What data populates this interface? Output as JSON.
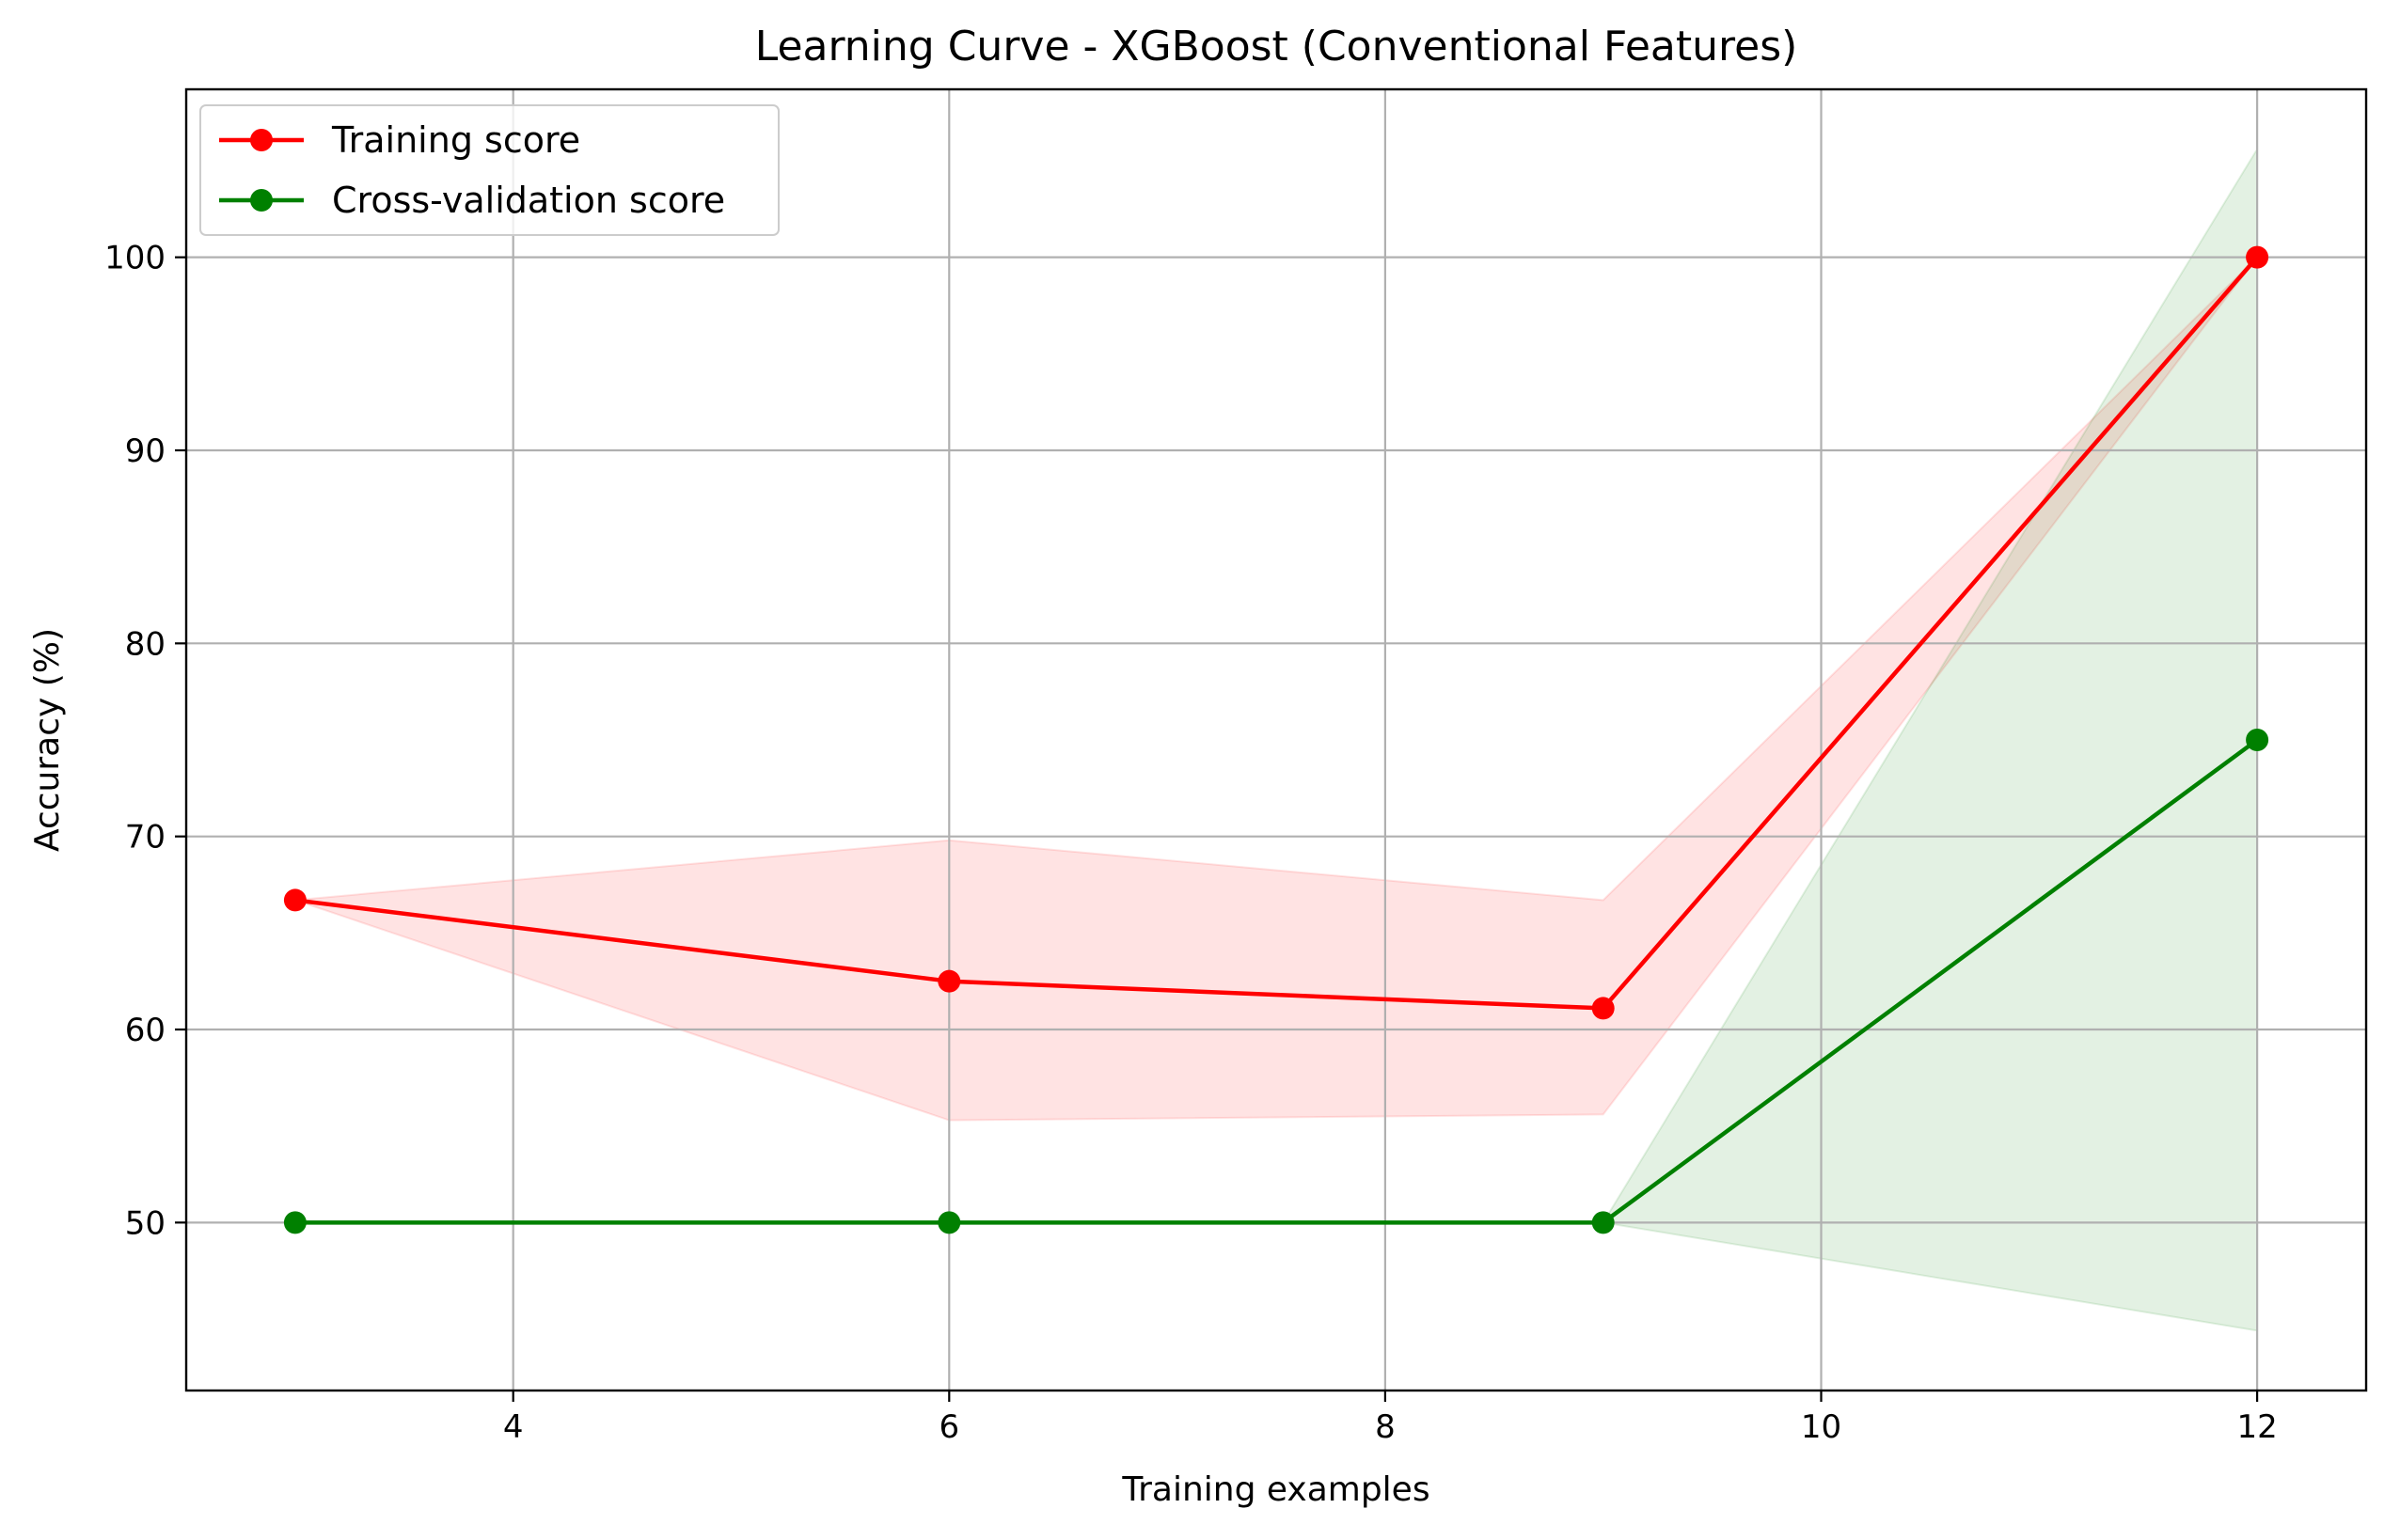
{
  "chart_data": {
    "type": "line",
    "title": "Learning Curve - XGBoost (Conventional Features)",
    "xlabel": "Training examples",
    "ylabel": "Accuracy (%)",
    "xlim": [
      2.5,
      12.5
    ],
    "ylim": [
      41.3,
      108.7
    ],
    "xticks": [
      4,
      6,
      8,
      10,
      12
    ],
    "yticks": [
      50,
      60,
      70,
      80,
      90,
      100
    ],
    "grid": true,
    "legend_position": "upper-left",
    "x": [
      3,
      6,
      9,
      12
    ],
    "series": [
      {
        "name": "Training score",
        "color": "#ff0000",
        "band_color": "#ff0000",
        "values": [
          66.7,
          62.5,
          61.1,
          100.0
        ],
        "band_upper": [
          66.7,
          69.8,
          66.7,
          100.0
        ],
        "band_lower": [
          66.7,
          55.3,
          55.6,
          100.0
        ]
      },
      {
        "name": "Cross-validation score",
        "color": "#008000",
        "band_color": "#008000",
        "values": [
          50.0,
          50.0,
          50.0,
          75.0
        ],
        "band_upper": [
          50.0,
          50.0,
          50.0,
          105.6
        ],
        "band_lower": [
          50.0,
          50.0,
          50.0,
          44.4
        ]
      }
    ]
  }
}
